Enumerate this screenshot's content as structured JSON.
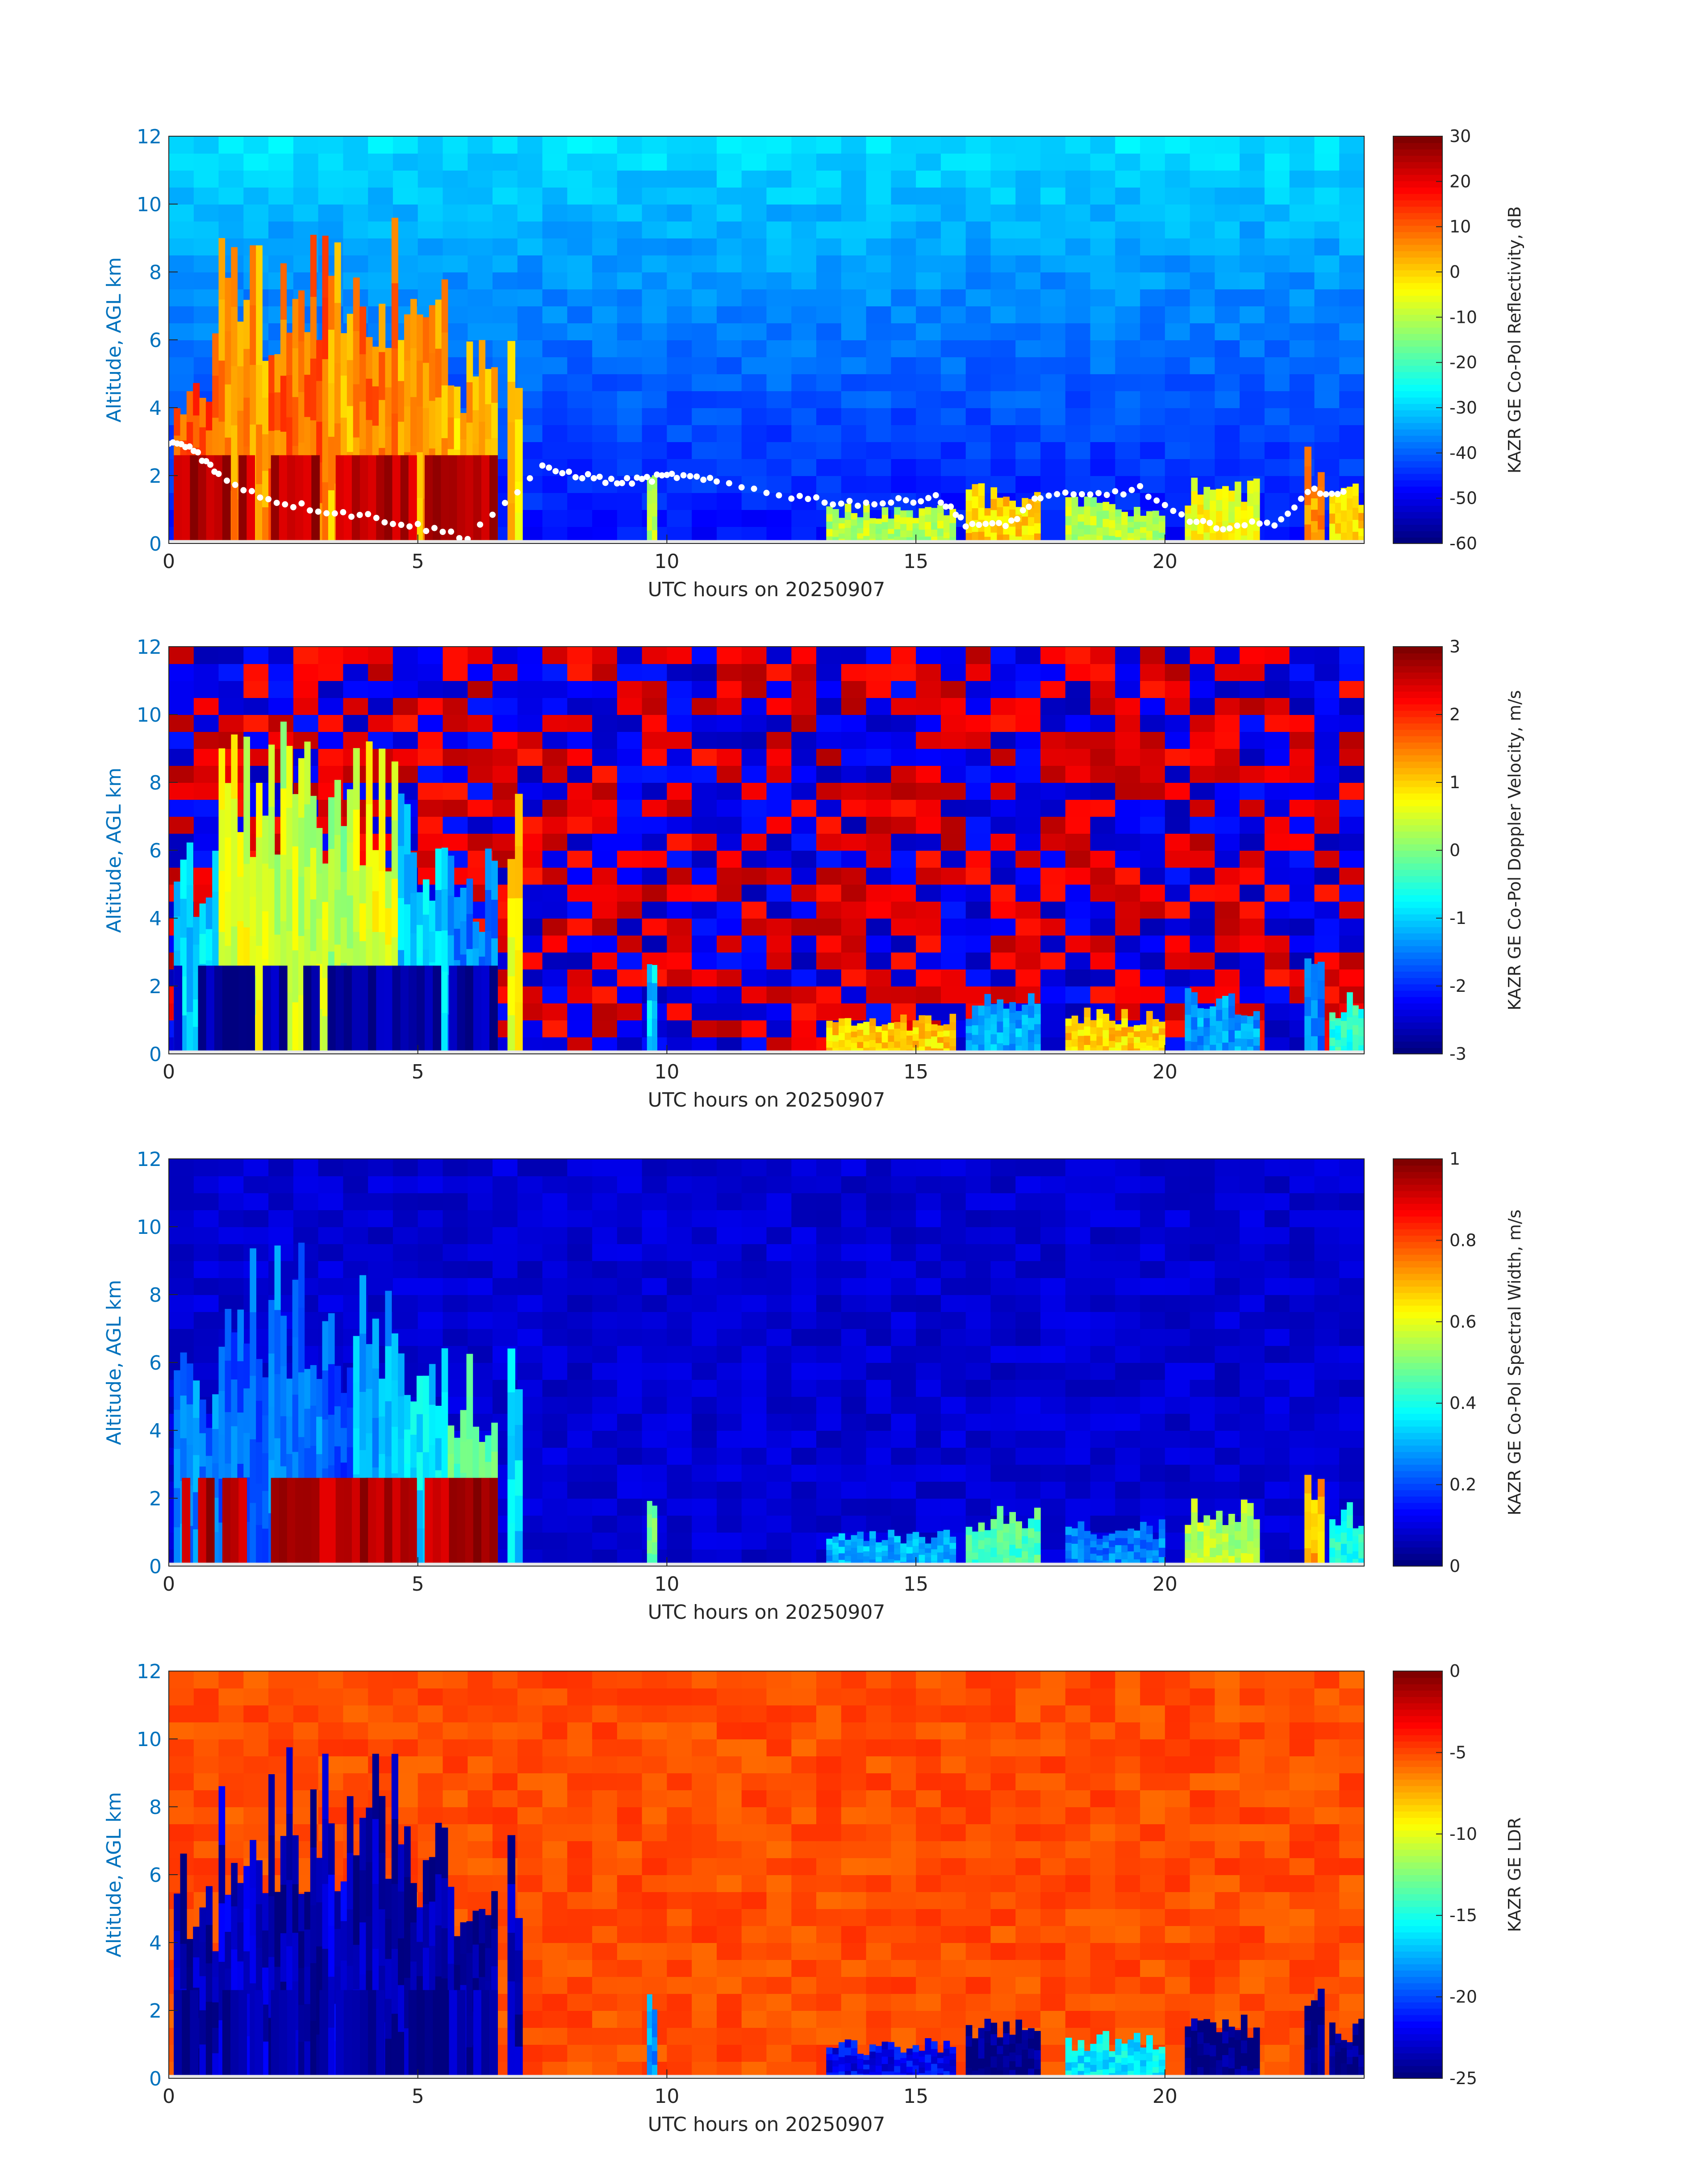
{
  "chart_data": [
    {
      "type": "heatmap",
      "title": "",
      "xlabel": "UTC hours on 20250907",
      "ylabel": "Altitude, AGL km",
      "xlim": [
        0,
        24
      ],
      "ylim": [
        0,
        12
      ],
      "xticks": [
        0,
        5,
        10,
        15,
        20
      ],
      "yticks": [
        0,
        2,
        4,
        6,
        8,
        10,
        12
      ],
      "colormap": "jet",
      "colorbar_label": "KAZR GE Co-Pol Reflectivity, dB",
      "clim": [
        -60,
        30
      ],
      "colorbar_ticks": [
        30,
        20,
        10,
        0,
        -10,
        -20,
        -30,
        -40,
        -50,
        -60
      ],
      "background_value": -30,
      "cloud_value": 0,
      "low_layer_value": 25,
      "overlay": "white cloud-base markers",
      "features": [
        {
          "t": [
            0.1,
            1.0
          ],
          "top": 6.8,
          "v": 12
        },
        {
          "t": [
            1.0,
            2.0
          ],
          "top": 9.5,
          "v": 5
        },
        {
          "t": [
            2.0,
            3.2
          ],
          "top": 9.8,
          "v": 10
        },
        {
          "t": [
            3.2,
            3.7
          ],
          "top": 9.0,
          "v": 3
        },
        {
          "t": [
            3.7,
            4.6
          ],
          "top": 9.6,
          "v": 8
        },
        {
          "t": [
            4.6,
            5.6
          ],
          "top": 7.8,
          "v": 5
        },
        {
          "t": [
            5.6,
            6.6
          ],
          "top": 6.5,
          "v": 2
        },
        {
          "t": [
            6.8,
            7.1
          ],
          "top": 8.3,
          "v": 0
        },
        {
          "t": [
            9.6,
            9.8
          ],
          "top": 2.8,
          "v": -10
        },
        {
          "t": [
            13.2,
            15.8
          ],
          "top": 1.2,
          "v": -10
        },
        {
          "t": [
            16.0,
            17.5
          ],
          "top": 1.8,
          "v": 0
        },
        {
          "t": [
            18.0,
            20.0
          ],
          "top": 1.4,
          "v": -10
        },
        {
          "t": [
            20.4,
            21.9
          ],
          "top": 2.0,
          "v": -5
        },
        {
          "t": [
            22.8,
            23.2
          ],
          "top": 3.0,
          "v": 5
        },
        {
          "t": [
            23.3,
            24.0
          ],
          "top": 1.9,
          "v": 0
        }
      ]
    },
    {
      "type": "heatmap",
      "title": "",
      "xlabel": "UTC hours on 20250907",
      "ylabel": "Altitude, AGL km",
      "xlim": [
        0,
        24
      ],
      "ylim": [
        0,
        12
      ],
      "xticks": [
        0,
        5,
        10,
        15,
        20
      ],
      "yticks": [
        0,
        2,
        4,
        6,
        8,
        10,
        12
      ],
      "colormap": "jet",
      "colorbar_label": "KAZR GE Co-Pol Doppler Velocity, m/s",
      "clim": [
        -3,
        3
      ],
      "colorbar_ticks": [
        3,
        2,
        1,
        0,
        -1,
        -2,
        -3
      ],
      "background_value": "noise",
      "cloud_value": 0.5,
      "low_layer_value": -2.8,
      "features": [
        {
          "t": [
            0.1,
            1.0
          ],
          "top": 6.8,
          "v": -1.0
        },
        {
          "t": [
            1.0,
            2.0
          ],
          "top": 9.5,
          "v": 0.6
        },
        {
          "t": [
            2.0,
            3.2
          ],
          "top": 9.8,
          "v": 0.4
        },
        {
          "t": [
            3.2,
            3.7
          ],
          "top": 9.0,
          "v": 0.2
        },
        {
          "t": [
            3.7,
            4.6
          ],
          "top": 9.6,
          "v": 0.6
        },
        {
          "t": [
            4.6,
            5.6
          ],
          "top": 7.8,
          "v": -1.0
        },
        {
          "t": [
            5.6,
            6.6
          ],
          "top": 6.5,
          "v": -1.5
        },
        {
          "t": [
            6.8,
            7.1
          ],
          "top": 8.3,
          "v": 0.8
        },
        {
          "t": [
            9.6,
            9.8
          ],
          "top": 2.8,
          "v": -1.0
        },
        {
          "t": [
            13.2,
            15.8
          ],
          "top": 1.2,
          "v": 1.0
        },
        {
          "t": [
            16.0,
            17.5
          ],
          "top": 1.8,
          "v": -1.2
        },
        {
          "t": [
            18.0,
            20.0
          ],
          "top": 1.4,
          "v": 1.0
        },
        {
          "t": [
            20.4,
            21.9
          ],
          "top": 2.0,
          "v": -1.3
        },
        {
          "t": [
            22.8,
            23.2
          ],
          "top": 3.0,
          "v": -1.5
        },
        {
          "t": [
            23.3,
            24.0
          ],
          "top": 1.9,
          "v": -0.5
        }
      ]
    },
    {
      "type": "heatmap",
      "title": "",
      "xlabel": "UTC hours on 20250907",
      "ylabel": "Altitude, AGL km",
      "xlim": [
        0,
        24
      ],
      "ylim": [
        0,
        12
      ],
      "xticks": [
        0,
        5,
        10,
        15,
        20
      ],
      "yticks": [
        0,
        2,
        4,
        6,
        8,
        10,
        12
      ],
      "colormap": "jet",
      "colorbar_label": "KAZR GE Co-Pol Spectral Width, m/s",
      "clim": [
        0,
        1
      ],
      "colorbar_ticks": [
        1,
        0.8,
        0.6,
        0.4,
        0.2,
        0
      ],
      "background_value": 0.08,
      "cloud_value": 0.3,
      "low_layer_value": 0.95,
      "features": [
        {
          "t": [
            0.1,
            1.0
          ],
          "top": 6.8,
          "v": 0.25
        },
        {
          "t": [
            1.0,
            2.0
          ],
          "top": 9.5,
          "v": 0.22
        },
        {
          "t": [
            2.0,
            3.2
          ],
          "top": 9.8,
          "v": 0.25
        },
        {
          "t": [
            3.2,
            3.7
          ],
          "top": 9.0,
          "v": 0.2
        },
        {
          "t": [
            3.7,
            4.6
          ],
          "top": 9.6,
          "v": 0.3
        },
        {
          "t": [
            4.6,
            5.6
          ],
          "top": 7.8,
          "v": 0.35
        },
        {
          "t": [
            5.6,
            6.6
          ],
          "top": 6.5,
          "v": 0.45
        },
        {
          "t": [
            6.8,
            7.1
          ],
          "top": 8.3,
          "v": 0.35
        },
        {
          "t": [
            9.6,
            9.8
          ],
          "top": 2.8,
          "v": 0.5
        },
        {
          "t": [
            13.2,
            15.8
          ],
          "top": 1.2,
          "v": 0.3
        },
        {
          "t": [
            16.0,
            17.5
          ],
          "top": 1.8,
          "v": 0.45
        },
        {
          "t": [
            18.0,
            20.0
          ],
          "top": 1.4,
          "v": 0.25
        },
        {
          "t": [
            20.4,
            21.9
          ],
          "top": 2.0,
          "v": 0.55
        },
        {
          "t": [
            22.8,
            23.2
          ],
          "top": 3.0,
          "v": 0.7
        },
        {
          "t": [
            23.3,
            24.0
          ],
          "top": 1.9,
          "v": 0.4
        }
      ]
    },
    {
      "type": "heatmap",
      "title": "",
      "xlabel": "UTC hours on 20250907",
      "ylabel": "Altitude, AGL km",
      "xlim": [
        0,
        24
      ],
      "ylim": [
        0,
        12
      ],
      "xticks": [
        0,
        5,
        10,
        15,
        20
      ],
      "yticks": [
        0,
        2,
        4,
        6,
        8,
        10,
        12
      ],
      "colormap": "jet",
      "colorbar_label": "KAZR GE LDR",
      "clim": [
        -25,
        0
      ],
      "colorbar_ticks": [
        0,
        -5,
        -10,
        -15,
        -20,
        -25
      ],
      "background_value": -5,
      "cloud_value": -24,
      "low_layer_value": -24,
      "features": [
        {
          "t": [
            0.1,
            1.0
          ],
          "top": 6.8,
          "v": -24
        },
        {
          "t": [
            1.0,
            2.0
          ],
          "top": 9.5,
          "v": -23
        },
        {
          "t": [
            2.0,
            3.2
          ],
          "top": 9.8,
          "v": -24
        },
        {
          "t": [
            3.2,
            3.7
          ],
          "top": 9.0,
          "v": -23
        },
        {
          "t": [
            3.7,
            4.6
          ],
          "top": 9.6,
          "v": -24
        },
        {
          "t": [
            4.6,
            5.6
          ],
          "top": 7.8,
          "v": -24
        },
        {
          "t": [
            5.6,
            6.6
          ],
          "top": 6.5,
          "v": -24
        },
        {
          "t": [
            6.8,
            7.1
          ],
          "top": 8.3,
          "v": -24
        },
        {
          "t": [
            9.6,
            9.8
          ],
          "top": 2.8,
          "v": -18
        },
        {
          "t": [
            13.2,
            15.8
          ],
          "top": 1.2,
          "v": -22
        },
        {
          "t": [
            16.0,
            17.5
          ],
          "top": 1.8,
          "v": -25
        },
        {
          "t": [
            18.0,
            20.0
          ],
          "top": 1.4,
          "v": -16
        },
        {
          "t": [
            20.4,
            21.9
          ],
          "top": 2.0,
          "v": -25
        },
        {
          "t": [
            22.8,
            23.2
          ],
          "top": 3.0,
          "v": -25
        },
        {
          "t": [
            23.3,
            24.0
          ],
          "top": 1.9,
          "v": -25
        }
      ]
    }
  ]
}
